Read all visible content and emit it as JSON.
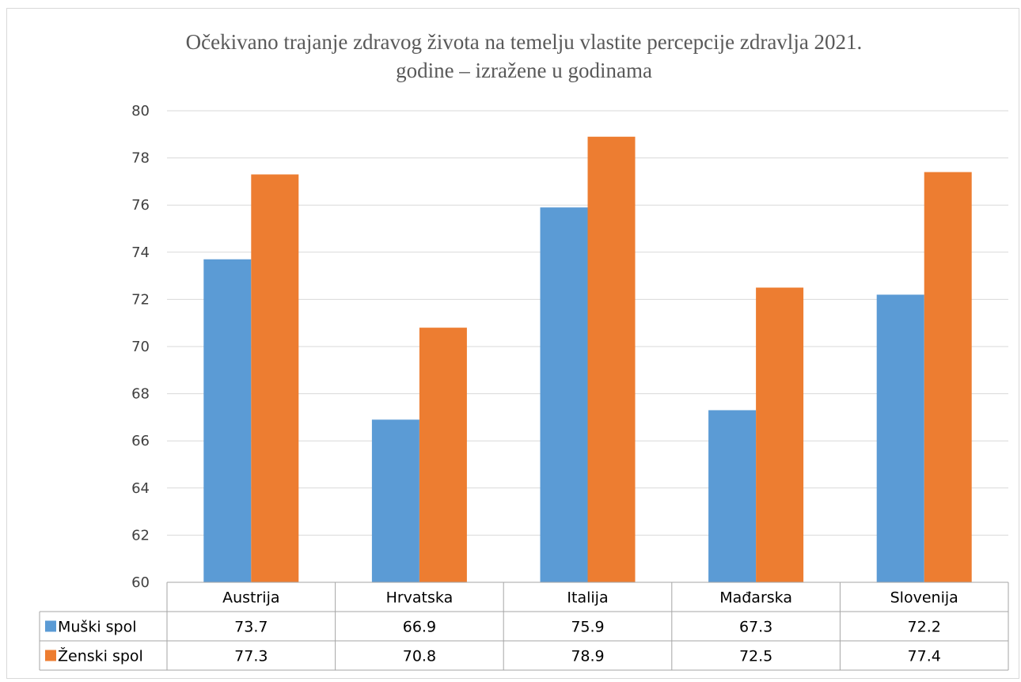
{
  "chart_data": {
    "type": "bar",
    "title_line1": "Očekivano trajanje zdravog života na temelju vlastite percepcije zdravlja 2021.",
    "title_line2": "godine – izražene u godinama",
    "categories": [
      "Austrija",
      "Hrvatska",
      "Italija",
      "Mađarska",
      "Slovenija"
    ],
    "series": [
      {
        "name": "Muški spol",
        "color": "#5b9bd5",
        "values": [
          73.7,
          66.9,
          75.9,
          67.3,
          72.2
        ]
      },
      {
        "name": "Ženski spol",
        "color": "#ed7d31",
        "values": [
          77.3,
          70.8,
          78.9,
          72.5,
          77.4
        ]
      }
    ],
    "xlabel": "",
    "ylabel": "",
    "ylim": [
      60,
      80
    ],
    "yticks": [
      "60",
      "62",
      "64",
      "66",
      "68",
      "70",
      "72",
      "74",
      "76",
      "78",
      "80"
    ],
    "grid": true,
    "legend": "data-table",
    "data_table": [
      [
        "73.7",
        "66.9",
        "75.9",
        "67.3",
        "72.2"
      ],
      [
        "77.3",
        "70.8",
        "78.9",
        "72.5",
        "77.4"
      ]
    ]
  }
}
